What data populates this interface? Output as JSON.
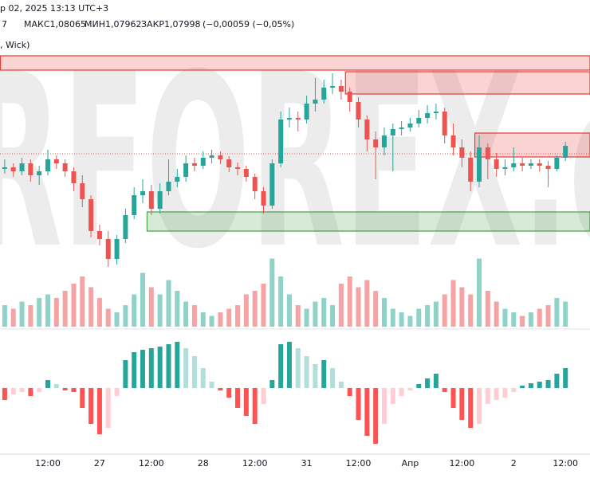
{
  "chart_data": {
    "type": "candlestick",
    "legend_text": [
      "р 02, 2025 13:13 UTC+3",
      "7",
      "МАКС1,08065",
      "МИН1,07962",
      "ЗАКР1,07998",
      "(−0,00059 (−0,05%)",
      ", Wick)"
    ],
    "watermark": "RFOREX.com",
    "categories": [
      null,
      null,
      null,
      null,
      null,
      "12:00",
      null,
      null,
      null,
      null,
      null,
      "27",
      null,
      null,
      null,
      null,
      null,
      "12:00",
      null,
      null,
      null,
      null,
      null,
      "28",
      null,
      null,
      null,
      null,
      null,
      "12:00",
      null,
      null,
      null,
      null,
      null,
      "31",
      null,
      null,
      null,
      null,
      null,
      "12:00",
      null,
      null,
      null,
      null,
      null,
      "Апр",
      null,
      null,
      null,
      null,
      null,
      "12:00",
      null,
      null,
      null,
      null,
      null,
      "2",
      null,
      null,
      null,
      null,
      null,
      "12:00"
    ],
    "open": [
      1.07812,
      1.0782,
      1.078,
      1.0784,
      1.0778,
      1.078,
      1.0786,
      1.0784,
      1.078,
      1.0774,
      1.0766,
      1.075,
      1.0746,
      1.0736,
      1.0746,
      1.0758,
      1.0768,
      1.077,
      1.07612,
      1.077,
      1.07748,
      1.07772,
      1.0784,
      1.07828,
      1.07868,
      1.0788,
      1.0786,
      1.0782,
      1.07812,
      1.07772,
      1.077,
      1.07628,
      1.0784,
      1.0806,
      1.08068,
      1.0806,
      1.0814,
      1.0816,
      1.0822,
      1.08228,
      1.082,
      1.08148,
      1.0806,
      1.0796,
      1.0792,
      1.0798,
      1.08012,
      1.0802,
      1.0804,
      1.08068,
      1.08092,
      1.081,
      1.0798,
      1.0792,
      1.07868,
      1.07748,
      1.0792,
      1.0786,
      1.07812,
      1.0782,
      1.0784,
      1.07828,
      1.0784,
      1.07828,
      1.07812,
      1.07868
    ],
    "high": [
      1.0786,
      1.0784,
      1.07868,
      1.0786,
      1.07828,
      1.07908,
      1.0788,
      1.0786,
      1.0782,
      1.0778,
      1.0768,
      1.07532,
      1.075,
      1.0748,
      1.07612,
      1.0772,
      1.0776,
      1.07732,
      1.0774,
      1.0786,
      1.07812,
      1.0788,
      1.07868,
      1.079,
      1.07908,
      1.079,
      1.07876,
      1.07844,
      1.07828,
      1.07788,
      1.0772,
      1.0786,
      1.081,
      1.0812,
      1.081,
      1.0818,
      1.08268,
      1.0826,
      1.08292,
      1.0826,
      1.0822,
      1.08172,
      1.0808,
      1.08,
      1.0802,
      1.0804,
      1.08052,
      1.08068,
      1.08108,
      1.08132,
      1.0814,
      1.0812,
      1.0804,
      1.0796,
      1.079,
      1.0798,
      1.0794,
      1.07892,
      1.0786,
      1.0792,
      1.07868,
      1.0786,
      1.0786,
      1.07852,
      1.0788,
      1.07948
    ],
    "low": [
      1.07788,
      1.07772,
      1.0778,
      1.07748,
      1.07732,
      1.0778,
      1.07812,
      1.07772,
      1.077,
      1.0762,
      1.07468,
      1.07428,
      1.0732,
      1.07332,
      1.0744,
      1.0756,
      1.0764,
      1.0758,
      1.07588,
      1.0768,
      1.0772,
      1.07748,
      1.078,
      1.07812,
      1.0784,
      1.07836,
      1.07796,
      1.0778,
      1.07748,
      1.0766,
      1.07588,
      1.07612,
      1.0782,
      1.0802,
      1.08,
      1.0804,
      1.081,
      1.0814,
      1.08188,
      1.0816,
      1.081,
      1.0802,
      1.079,
      1.0776,
      1.0788,
      1.078,
      1.0798,
      1.08,
      1.0802,
      1.0804,
      1.0806,
      1.0794,
      1.0788,
      1.0782,
      1.077,
      1.0772,
      1.0776,
      1.07772,
      1.0778,
      1.078,
      1.078,
      1.07812,
      1.078,
      1.0772,
      1.078,
      1.07852
    ],
    "close": [
      1.0782,
      1.078,
      1.0784,
      1.0778,
      1.078,
      1.0786,
      1.0784,
      1.078,
      1.0774,
      1.0766,
      1.075,
      1.0746,
      1.0736,
      1.0746,
      1.0758,
      1.0768,
      1.077,
      1.07612,
      1.077,
      1.07748,
      1.07772,
      1.0784,
      1.07828,
      1.07868,
      1.0788,
      1.0786,
      1.0782,
      1.07812,
      1.07772,
      1.077,
      1.07628,
      1.0784,
      1.0806,
      1.08068,
      1.0806,
      1.0814,
      1.0816,
      1.0822,
      1.08228,
      1.082,
      1.08148,
      1.0806,
      1.0796,
      1.0792,
      1.0798,
      1.08012,
      1.0802,
      1.0804,
      1.08068,
      1.08092,
      1.081,
      1.0798,
      1.0792,
      1.07868,
      1.07748,
      1.0792,
      1.0786,
      1.07812,
      1.0782,
      1.0784,
      1.07828,
      1.0784,
      1.07828,
      1.07812,
      1.07868,
      1.07928
    ],
    "colors": {
      "up": "#26a69a",
      "down": "#ef5350"
    },
    "ylim": [
      1.073,
      1.0842
    ],
    "price_line": 1.07888,
    "zones": [
      {
        "top": 1.0838,
        "bottom": 1.08308,
        "start": 0,
        "color": "#e53935"
      },
      {
        "top": 1.083,
        "bottom": 1.08188,
        "start": 40,
        "color": "#e53935"
      },
      {
        "top": 1.07992,
        "bottom": 1.07872,
        "start": 55,
        "color": "#e53935"
      },
      {
        "top": 1.07596,
        "bottom": 1.075,
        "start": 17,
        "color": "#43a047"
      }
    ],
    "volume": {
      "ylim": [
        0,
        100
      ],
      "colors": {
        "up": "#8fd3c8",
        "down": "#f5a3a3"
      },
      "values": [
        30,
        25,
        35,
        30,
        40,
        45,
        40,
        50,
        60,
        70,
        55,
        40,
        25,
        20,
        30,
        45,
        75,
        55,
        45,
        65,
        50,
        35,
        30,
        20,
        15,
        20,
        25,
        30,
        45,
        50,
        60,
        95,
        70,
        45,
        30,
        25,
        35,
        40,
        30,
        60,
        70,
        55,
        65,
        50,
        40,
        25,
        20,
        15,
        25,
        30,
        35,
        45,
        65,
        55,
        45,
        95,
        50,
        35,
        25,
        20,
        15,
        20,
        25,
        30,
        40,
        35
      ]
    },
    "oscillator": {
      "ylim": [
        -75,
        70
      ],
      "colors": {
        "up_rising": "#26a69a",
        "up_falling": "#b2dfdb",
        "down_falling": "#ff5252",
        "down_rising": "#ffcdd2"
      },
      "values": [
        -15,
        -8,
        -5,
        -10,
        -5,
        10,
        5,
        -3,
        -5,
        -25,
        -45,
        -58,
        -50,
        -10,
        35,
        45,
        48,
        50,
        52,
        55,
        58,
        50,
        40,
        25,
        8,
        -3,
        -12,
        -25,
        -35,
        -45,
        -20,
        10,
        55,
        58,
        50,
        40,
        30,
        35,
        25,
        8,
        -10,
        -40,
        -60,
        -70,
        -45,
        -20,
        -10,
        -3,
        5,
        12,
        18,
        -5,
        -25,
        -40,
        -50,
        -45,
        -20,
        -15,
        -12,
        -5,
        3,
        6,
        8,
        10,
        18,
        25
      ]
    }
  }
}
